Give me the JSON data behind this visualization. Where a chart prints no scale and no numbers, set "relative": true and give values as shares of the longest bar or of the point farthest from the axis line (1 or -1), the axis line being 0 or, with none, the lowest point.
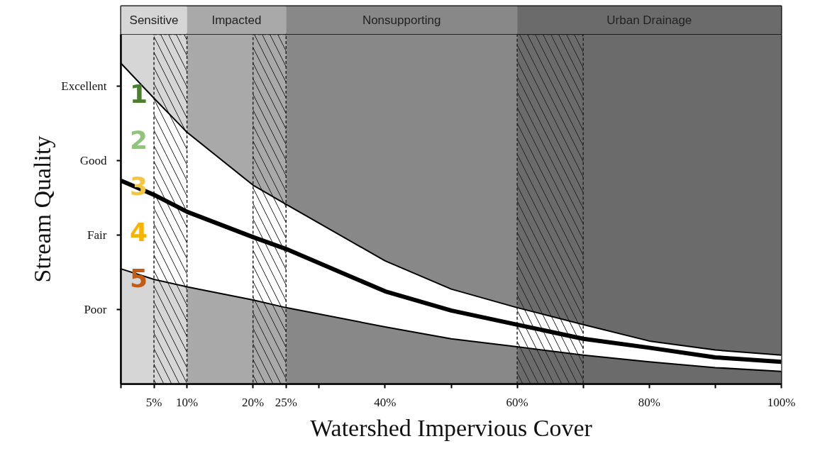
{
  "chart_data": {
    "type": "line",
    "xlabel": "Watershed Impervious Cover",
    "ylabel": "Stream Quality",
    "relative": true,
    "x": [
      0,
      5,
      10,
      20,
      25,
      40,
      50,
      60,
      70,
      80,
      90,
      100
    ],
    "series": [
      {
        "color": "#000000",
        "values": [
          1,
          0.891,
          0.785,
          0.62,
          0.56,
          0.384,
          0.296,
          0.238,
          0.185,
          0.134,
          0.106,
          0.09
        ]
      },
      {
        "color": "#000000",
        "values": [
          0.634,
          0.59,
          0.537,
          0.458,
          0.421,
          0.289,
          0.229,
          0.185,
          0.141,
          0.113,
          0.083,
          0.069
        ],
        "lower": [
          0.359,
          0.326,
          0.303,
          0.262,
          0.238,
          0.178,
          0.141,
          0.116,
          0.09,
          0.069,
          0.051,
          0.039
        ],
        "upper": [
          1,
          0.891,
          0.785,
          0.62,
          0.56,
          0.384,
          0.296,
          0.238,
          0.185,
          0.134,
          0.106,
          0.09
        ]
      },
      {
        "color": "#000000",
        "values": [
          0.359,
          0.326,
          0.303,
          0.262,
          0.238,
          0.178,
          0.141,
          0.116,
          0.09,
          0.069,
          0.051,
          0.039
        ]
      }
    ],
    "xlim": [
      0,
      100
    ],
    "xticks": [
      {
        "value": 0,
        "label": null
      },
      {
        "value": 5,
        "label": "5%"
      },
      {
        "value": 10,
        "label": "10%"
      },
      {
        "value": 20,
        "label": "20%"
      },
      {
        "value": 25,
        "label": "25%"
      },
      {
        "value": 30,
        "label": null
      },
      {
        "value": 40,
        "label": "40%"
      },
      {
        "value": 50,
        "label": null
      },
      {
        "value": 60,
        "label": "60%"
      },
      {
        "value": 70,
        "label": null
      },
      {
        "value": 80,
        "label": "80%"
      },
      {
        "value": 90,
        "label": null
      },
      {
        "value": 100,
        "label": "100%"
      }
    ],
    "bands": [
      {
        "axis": "x",
        "from": 0,
        "to": 10,
        "label": "Sensitive",
        "color": "#d6d6d6"
      },
      {
        "axis": "x",
        "from": 10,
        "to": 25,
        "label": "Impacted",
        "color": "#a9a9a9"
      },
      {
        "axis": "x",
        "from": 25,
        "to": 60,
        "label": "Nonsupporting",
        "color": "#888888"
      },
      {
        "axis": "x",
        "from": 60,
        "to": 100,
        "label": "Urban Drainage",
        "color": "#6b6b6b"
      },
      {
        "axis": "x",
        "from": 5,
        "to": 10,
        "label": null
      },
      {
        "axis": "x",
        "from": 20,
        "to": 25,
        "label": null
      },
      {
        "axis": "x",
        "from": 60,
        "to": 70,
        "label": null
      }
    ],
    "annotations": [
      "Excellent",
      "Good",
      "Fair",
      "Poor",
      "1",
      "2",
      "3",
      "4",
      "5"
    ],
    "grid": false,
    "marker": "none",
    "line_style": "solid"
  }
}
